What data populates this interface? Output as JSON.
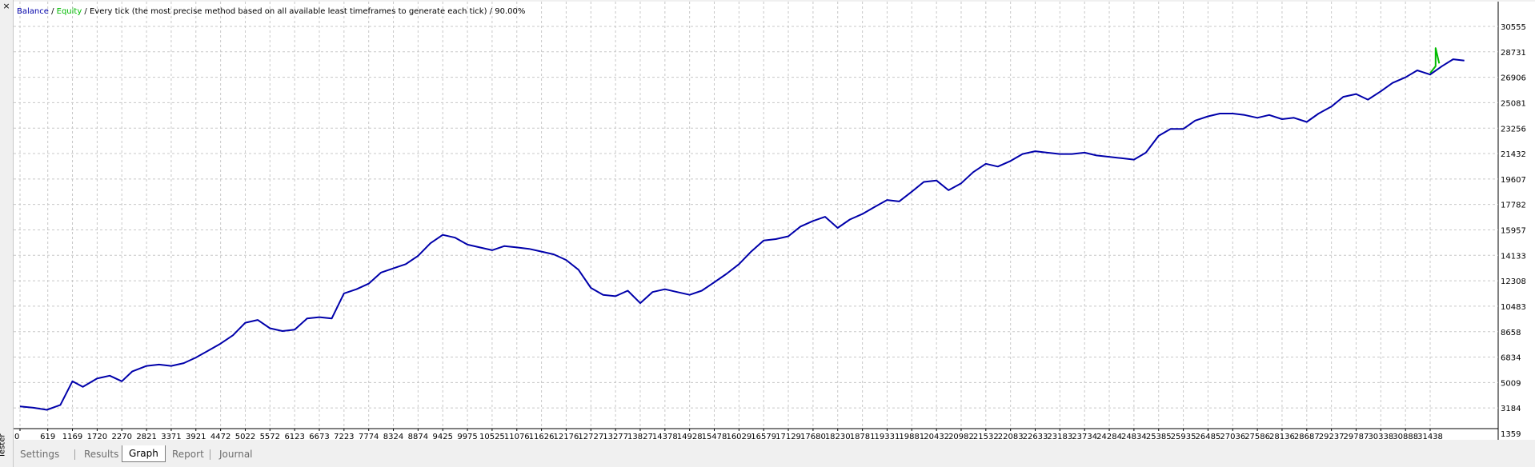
{
  "window": {
    "panel_title": "Tester",
    "close_glyph": "×"
  },
  "legend": {
    "balance": "Balance",
    "sep1": " / ",
    "equity": "Equity",
    "sep2": " / ",
    "method": "Every tick (the most precise method based on all available least timeframes to generate each tick)",
    "sep3": " / ",
    "quality": "90.00%",
    "balance_color": "#0000aa",
    "equity_color": "#00bb00"
  },
  "tabs": [
    "Settings",
    "Results",
    "Graph",
    "Report",
    "Journal"
  ],
  "active_tab": "Graph",
  "chart_data": {
    "type": "line",
    "y_ticks": [
      30555,
      28731,
      26906,
      25081,
      23256,
      21432,
      19607,
      17782,
      15957,
      14133,
      12308,
      10483,
      8658,
      6834,
      5009,
      3184,
      1359
    ],
    "x_ticks": [
      0,
      619,
      1169,
      1720,
      2270,
      2821,
      3371,
      3921,
      4472,
      5022,
      5572,
      6123,
      6673,
      7223,
      7774,
      8324,
      8874,
      9425,
      9975,
      10525,
      11076,
      11626,
      12176,
      12727,
      13277,
      13827,
      14378,
      14928,
      15478,
      16029,
      16579,
      17129,
      17680,
      18230,
      18781,
      19331,
      19881,
      20432,
      20982,
      21532,
      22083,
      22633,
      23183,
      23734,
      24284,
      24834,
      25385,
      25935,
      26485,
      27036,
      27586,
      28136,
      28687,
      29237,
      29787,
      30338,
      30888,
      31438
    ],
    "ylim": [
      1359,
      31300
    ],
    "xlim": [
      0,
      32300
    ],
    "grid": true,
    "series": [
      {
        "name": "Balance",
        "color": "#0000aa",
        "x": [
          0,
          300,
          600,
          900,
          1169,
          1400,
          1720,
          2000,
          2270,
          2500,
          2821,
          3100,
          3371,
          3650,
          3921,
          4200,
          4472,
          4750,
          5022,
          5300,
          5572,
          5850,
          6123,
          6400,
          6673,
          6950,
          7223,
          7500,
          7774,
          8050,
          8324,
          8600,
          8874,
          9150,
          9425,
          9700,
          9975,
          10250,
          10525,
          10800,
          11076,
          11350,
          11626,
          11900,
          12176,
          12450,
          12727,
          13000,
          13277,
          13550,
          13827,
          14100,
          14378,
          14650,
          14928,
          15200,
          15478,
          15750,
          16029,
          16300,
          16579,
          16850,
          17129,
          17400,
          17680,
          17950,
          18230,
          18500,
          18781,
          19050,
          19331,
          19600,
          19881,
          20150,
          20432,
          20700,
          20982,
          21250,
          21532,
          21800,
          22083,
          22350,
          22633,
          22900,
          23183,
          23450,
          23734,
          24000,
          24284,
          24550,
          24834,
          25100,
          25385,
          25650,
          25935,
          26200,
          26485,
          26750,
          27036,
          27300,
          27586,
          27850,
          28136,
          28400,
          28687,
          28950,
          29237,
          29500,
          29787,
          30050,
          30338,
          30600,
          30888,
          31150,
          31438,
          31700,
          31950,
          32200
        ],
        "y": [
          3300,
          3200,
          3050,
          3400,
          5100,
          4700,
          5300,
          5500,
          5100,
          5800,
          6200,
          6300,
          6200,
          6400,
          6800,
          7300,
          7800,
          8400,
          9300,
          9500,
          8900,
          8700,
          8800,
          9600,
          9700,
          9600,
          11400,
          11700,
          12100,
          12900,
          13200,
          13500,
          14100,
          15000,
          15600,
          15400,
          14900,
          14700,
          14500,
          14800,
          14700,
          14600,
          14400,
          14200,
          13800,
          13100,
          11800,
          11300,
          11200,
          11600,
          10700,
          11500,
          11700,
          11500,
          11300,
          11600,
          12200,
          12800,
          13500,
          14400,
          15200,
          15300,
          15500,
          16200,
          16600,
          16900,
          16100,
          16700,
          17100,
          17600,
          18100,
          18000,
          18700,
          19400,
          19500,
          18800,
          19300,
          20100,
          20700,
          20500,
          20900,
          21400,
          21600,
          21500,
          21400,
          21400,
          21500,
          21300,
          21200,
          21100,
          21000,
          21500,
          22700,
          23200,
          23200,
          23800,
          24100,
          24300,
          24300,
          24200,
          24000,
          24200,
          23900,
          24000,
          23700,
          24300,
          24800,
          25500,
          25700,
          25300,
          25900,
          26500,
          26900,
          27400,
          27100,
          27700,
          28200,
          28100
        ]
      },
      {
        "name": "Equity",
        "color": "#00bb00",
        "x": [
          31438,
          31560,
          31560,
          31640
        ],
        "y": [
          27200,
          27700,
          29000,
          27900
        ]
      }
    ]
  }
}
